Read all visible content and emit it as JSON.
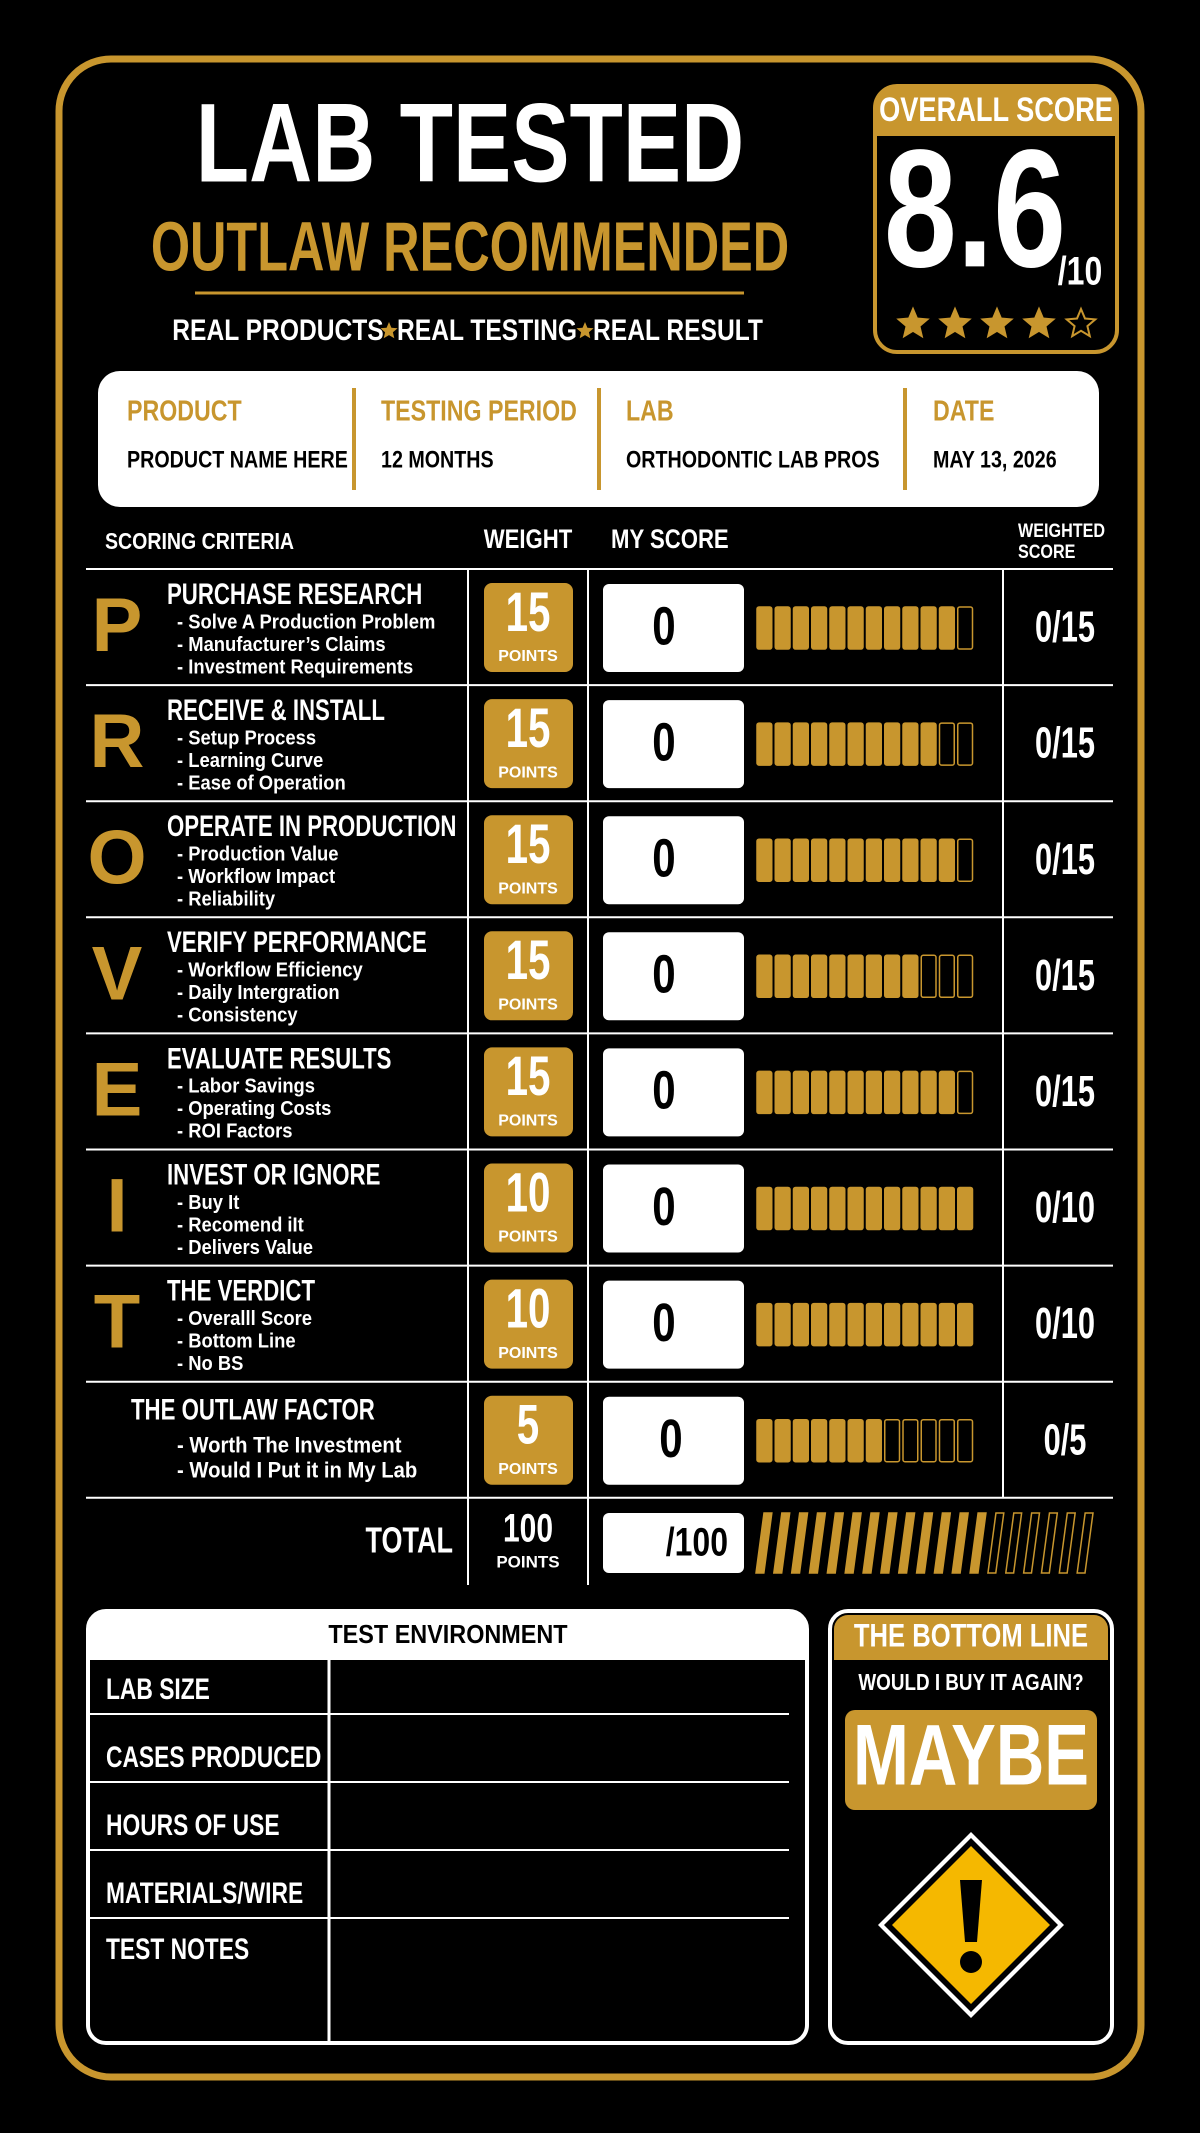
{
  "header": {
    "title": "LAB TESTED",
    "subtitle": "OUTLAW RECOMMENDED",
    "tagline": [
      "REAL PRODUCTS",
      "REAL TESTING",
      "REAL RESULT"
    ]
  },
  "overall_score": {
    "label": "OVERALL SCORE",
    "score": "8.6",
    "out_of": "/10",
    "stars_filled": 4,
    "stars_total": 5
  },
  "info": [
    {
      "label": "PRODUCT",
      "value": "PRODUCT NAME HERE"
    },
    {
      "label": "TESTING PERIOD",
      "value": "12 MONTHS"
    },
    {
      "label": "LAB",
      "value": "ORTHODONTIC LAB PROS"
    },
    {
      "label": "DATE",
      "value": "MAY 13, 2026"
    }
  ],
  "table": {
    "headers": {
      "criteria": "SCORING CRITERIA",
      "weight": "WEIGHT",
      "my_score": "MY SCORE",
      "weighted": [
        "WEIGHTED",
        "SCORE"
      ]
    },
    "rows": [
      {
        "letter": "P",
        "title": "PURCHASE RESEARCH",
        "items": [
          "- Solve A Production Problem",
          "- Manufacturer’s Claims",
          "- Investment Requirements"
        ],
        "weight": 15,
        "points_label": "POINTS",
        "score": 0,
        "bar_filled": 11,
        "bar_segments": 12,
        "weighted": "0/15"
      },
      {
        "letter": "R",
        "title": "RECEIVE & INSTALL",
        "items": [
          "- Setup Process",
          "- Learning Curve",
          "- Ease of Operation"
        ],
        "weight": 15,
        "points_label": "POINTS",
        "score": 0,
        "bar_filled": 10,
        "bar_segments": 12,
        "weighted": "0/15"
      },
      {
        "letter": "O",
        "title": "OPERATE IN PRODUCTION",
        "items": [
          "- Production Value",
          "- Workflow Impact",
          "- Reliability"
        ],
        "weight": 15,
        "points_label": "POINTS",
        "score": 0,
        "bar_filled": 11,
        "bar_segments": 12,
        "weighted": "0/15"
      },
      {
        "letter": "V",
        "title": "VERIFY PERFORMANCE",
        "items": [
          "- Workflow Efficiency",
          "- Daily Intergration",
          "- Consistency"
        ],
        "weight": 15,
        "points_label": "POINTS",
        "score": 0,
        "bar_filled": 9,
        "bar_segments": 12,
        "weighted": "0/15"
      },
      {
        "letter": "E",
        "title": "EVALUATE RESULTS",
        "items": [
          "- Labor Savings",
          "- Operating Costs",
          "- ROI Factors"
        ],
        "weight": 15,
        "points_label": "POINTS",
        "score": 0,
        "bar_filled": 11,
        "bar_segments": 12,
        "weighted": "0/15"
      },
      {
        "letter": "I",
        "title": "INVEST OR IGNORE",
        "items": [
          "- Buy It",
          "- Recomend iIt",
          "- Delivers Value"
        ],
        "weight": 10,
        "points_label": "POINTS",
        "score": 0,
        "bar_filled": 12,
        "bar_segments": 12,
        "weighted": "0/10"
      },
      {
        "letter": "T",
        "title": "THE VERDICT",
        "items": [
          "- Overalll Score",
          "- Bottom Line",
          "- No BS"
        ],
        "weight": 10,
        "points_label": "POINTS",
        "score": 0,
        "bar_filled": 12,
        "bar_segments": 12,
        "weighted": "0/10"
      },
      {
        "title": "THE OUTLAW FACTOR",
        "items": [
          "- Worth The Investment",
          "- Would I Put it in My Lab"
        ],
        "weight": 5,
        "points_label": "POINTS",
        "score": 0,
        "bar_filled": 7,
        "bar_segments": 12,
        "weighted": "0/5"
      }
    ],
    "total": {
      "label": "TOTAL",
      "weight": 100,
      "points_label": "POINTS",
      "score": "/100",
      "bar_filled": 13,
      "bar_segments": 19
    }
  },
  "test_environment": {
    "title": "TEST ENVIRONMENT",
    "rows": [
      "LAB SIZE",
      "CASES PRODUCED",
      "HOURS OF USE",
      "MATERIALS/WIRE",
      "TEST NOTES"
    ]
  },
  "bottom_line": {
    "title": "THE BOTTOM LINE",
    "question": "WOULD I BUY IT AGAIN?",
    "answer": "MAYBE"
  }
}
